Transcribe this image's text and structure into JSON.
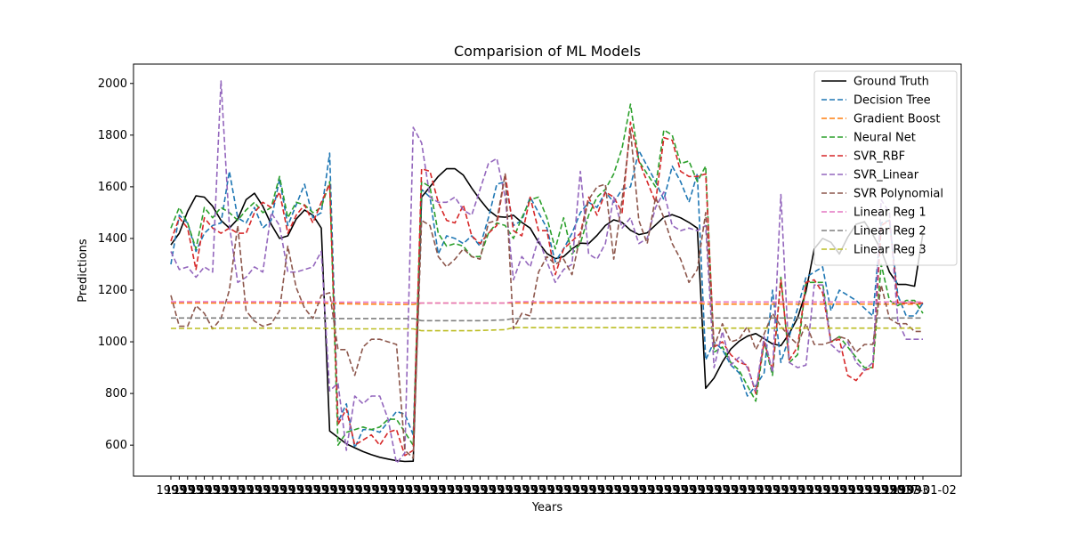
{
  "chart_data": {
    "type": "line",
    "title": "Comparision of ML Models",
    "xlabel": "Years",
    "ylabel": "Predictions",
    "ylim": [
      480,
      2075
    ],
    "yticks": [
      600,
      800,
      1000,
      1200,
      1400,
      1600,
      1800,
      2000
    ],
    "x_tick_text": "1993",
    "x_tick_text_end": "2017-01-02",
    "legend_position": "upper right",
    "grid": false,
    "series": [
      {
        "name": "Ground Truth",
        "color": "#000000",
        "style": "solid",
        "values": [
          1375,
          1420,
          1505,
          1565,
          1560,
          1525,
          1470,
          1440,
          1475,
          1550,
          1575,
          1525,
          1455,
          1400,
          1410,
          1475,
          1510,
          1490,
          1440,
          655,
          630,
          605,
          590,
          575,
          563,
          553,
          546,
          540,
          537,
          538,
          1560,
          1600,
          1640,
          1670,
          1670,
          1645,
          1595,
          1550,
          1510,
          1485,
          1482,
          1490,
          1462,
          1440,
          1385,
          1342,
          1322,
          1330,
          1360,
          1382,
          1380,
          1412,
          1450,
          1472,
          1462,
          1432,
          1415,
          1422,
          1452,
          1482,
          1492,
          1480,
          1462,
          1440,
          820,
          860,
          922,
          972,
          1002,
          1022,
          1032,
          1012,
          992,
          985,
          1032,
          1092,
          1195,
          1360,
          1400,
          1385,
          1340,
          1405,
          1455,
          1465,
          1415,
          1355,
          1270,
          1222,
          1222,
          1215,
          1420
        ]
      },
      {
        "name": "Decision Tree",
        "color": "#1f77b4",
        "style": "dashed",
        "values": [
          1300,
          1490,
          1460,
          1350,
          1420,
          1450,
          1460,
          1660,
          1480,
          1460,
          1520,
          1440,
          1470,
          1630,
          1450,
          1530,
          1610,
          1480,
          1500,
          1730,
          690,
          760,
          590,
          660,
          660,
          650,
          690,
          730,
          720,
          640,
          1590,
          1560,
          1340,
          1410,
          1400,
          1380,
          1410,
          1370,
          1480,
          1610,
          1620,
          1450,
          1470,
          1560,
          1500,
          1440,
          1310,
          1360,
          1420,
          1500,
          1540,
          1520,
          1580,
          1540,
          1590,
          1600,
          1740,
          1680,
          1620,
          1550,
          1680,
          1620,
          1540,
          1650,
          930,
          1000,
          970,
          910,
          880,
          790,
          830,
          880,
          1200,
          920,
          1020,
          1130,
          1250,
          1270,
          1290,
          1120,
          1200,
          1180,
          1160,
          1130,
          1100,
          1460,
          1470,
          1180,
          1100,
          1100,
          1150
        ]
      },
      {
        "name": "Gradient Boost",
        "color": "#ff7f0e",
        "style": "dashed",
        "values": [
          1150,
          1150,
          1150,
          1150,
          1150,
          1150,
          1150,
          1150,
          1150,
          1150,
          1150,
          1150,
          1150,
          1150,
          1150,
          1150,
          1150,
          1150,
          1150,
          1148,
          1148,
          1147,
          1147,
          1146,
          1146,
          1146,
          1145,
          1145,
          1145,
          1145,
          1150,
          1150,
          1150,
          1150,
          1150,
          1150,
          1150,
          1150,
          1150,
          1150,
          1150,
          1150,
          1150,
          1150,
          1150,
          1150,
          1150,
          1150,
          1150,
          1150,
          1150,
          1150,
          1150,
          1150,
          1150,
          1150,
          1150,
          1150,
          1150,
          1150,
          1150,
          1150,
          1150,
          1150,
          1146,
          1146,
          1146,
          1146,
          1146,
          1146,
          1146,
          1146,
          1146,
          1146,
          1146,
          1146,
          1146,
          1146,
          1146,
          1146,
          1146,
          1146,
          1146,
          1146,
          1146,
          1146,
          1146,
          1146,
          1146,
          1146,
          1146
        ]
      },
      {
        "name": "Neural Net",
        "color": "#2ca02c",
        "style": "dashed",
        "values": [
          1440,
          1520,
          1460,
          1360,
          1520,
          1480,
          1520,
          1500,
          1470,
          1510,
          1540,
          1500,
          1520,
          1640,
          1480,
          1540,
          1530,
          1500,
          1520,
          1620,
          600,
          650,
          660,
          670,
          660,
          670,
          700,
          700,
          650,
          600,
          1620,
          1600,
          1420,
          1370,
          1380,
          1370,
          1330,
          1330,
          1420,
          1460,
          1450,
          1400,
          1480,
          1550,
          1560,
          1480,
          1360,
          1480,
          1340,
          1380,
          1490,
          1560,
          1590,
          1650,
          1750,
          1920,
          1700,
          1650,
          1600,
          1820,
          1800,
          1690,
          1700,
          1620,
          1680,
          960,
          980,
          920,
          890,
          830,
          770,
          1000,
          870,
          1250,
          920,
          950,
          1230,
          1230,
          1230,
          1000,
          1020,
          980,
          940,
          900,
          900,
          1300,
          1160,
          1140,
          1160,
          1160,
          1110
        ]
      },
      {
        "name": "SVR_RBF",
        "color": "#d62728",
        "style": "dashed",
        "values": [
          1390,
          1480,
          1440,
          1280,
          1480,
          1440,
          1420,
          1440,
          1420,
          1420,
          1500,
          1540,
          1520,
          1580,
          1420,
          1490,
          1530,
          1460,
          1540,
          1610,
          680,
          740,
          600,
          620,
          640,
          600,
          650,
          660,
          560,
          580,
          1670,
          1660,
          1540,
          1470,
          1460,
          1530,
          1410,
          1380,
          1420,
          1450,
          1650,
          1430,
          1410,
          1560,
          1430,
          1430,
          1260,
          1360,
          1390,
          1420,
          1560,
          1490,
          1580,
          1560,
          1500,
          1850,
          1700,
          1620,
          1540,
          1790,
          1780,
          1660,
          1640,
          1640,
          1650,
          980,
          1000,
          950,
          920,
          910,
          800,
          1000,
          890,
          1240,
          930,
          980,
          1230,
          1240,
          1190,
          1000,
          1010,
          870,
          850,
          890,
          900,
          1450,
          1470,
          1150,
          1150,
          1150,
          1150
        ]
      },
      {
        "name": "SVR_Linear",
        "color": "#9467bd",
        "style": "dashed",
        "values": [
          1350,
          1280,
          1290,
          1250,
          1290,
          1270,
          2010,
          1450,
          1230,
          1250,
          1290,
          1270,
          1500,
          1450,
          1270,
          1270,
          1280,
          1290,
          1350,
          810,
          840,
          580,
          790,
          760,
          790,
          790,
          700,
          530,
          570,
          1830,
          1770,
          1560,
          1540,
          1540,
          1560,
          1510,
          1490,
          1590,
          1690,
          1710,
          1560,
          1240,
          1330,
          1290,
          1400,
          1310,
          1230,
          1280,
          1300,
          1660,
          1340,
          1320,
          1380,
          1560,
          1440,
          1480,
          1380,
          1400,
          1520,
          1580,
          1450,
          1430,
          1440,
          1430,
          1450,
          900,
          1040,
          910,
          940,
          900,
          810,
          1020,
          880,
          1570,
          920,
          900,
          910,
          1220,
          1220,
          990,
          960,
          1000,
          920,
          890,
          920,
          1550,
          1500,
          1080,
          1010,
          1010,
          1010
        ]
      },
      {
        "name": "SVR Polynomial",
        "color": "#8c564b",
        "style": "dashed",
        "values": [
          1180,
          1060,
          1060,
          1140,
          1110,
          1050,
          1090,
          1200,
          1450,
          1120,
          1080,
          1060,
          1070,
          1120,
          1370,
          1210,
          1130,
          1090,
          1180,
          1190,
          970,
          970,
          870,
          980,
          1010,
          1010,
          1000,
          990,
          580,
          550,
          1470,
          1450,
          1330,
          1290,
          1320,
          1360,
          1330,
          1320,
          1460,
          1470,
          1650,
          1050,
          1110,
          1100,
          1270,
          1330,
          1300,
          1320,
          1260,
          1410,
          1550,
          1600,
          1610,
          1320,
          1550,
          1820,
          1470,
          1380,
          1560,
          1480,
          1380,
          1320,
          1230,
          1280,
          1500,
          980,
          1070,
          1000,
          1010,
          1060,
          970,
          1030,
          1110,
          1060,
          1020,
          990,
          1070,
          990,
          990,
          1000,
          1020,
          1010,
          960,
          990,
          990,
          1220,
          1090,
          1070,
          1070,
          1040,
          1040
        ]
      },
      {
        "name": "Linear Reg 1",
        "color": "#e377c2",
        "style": "dashed",
        "values": [
          1155,
          1155,
          1155,
          1155,
          1155,
          1155,
          1155,
          1155,
          1155,
          1155,
          1155,
          1155,
          1155,
          1155,
          1155,
          1155,
          1155,
          1155,
          1155,
          1154,
          1153,
          1153,
          1153,
          1153,
          1153,
          1153,
          1153,
          1152,
          1152,
          1152,
          1150,
          1150,
          1150,
          1150,
          1150,
          1150,
          1150,
          1150,
          1150,
          1150,
          1150,
          1155,
          1155,
          1155,
          1155,
          1155,
          1155,
          1155,
          1155,
          1155,
          1155,
          1155,
          1155,
          1155,
          1155,
          1155,
          1155,
          1155,
          1155,
          1155,
          1155,
          1155,
          1155,
          1155,
          1154,
          1154,
          1154,
          1154,
          1154,
          1154,
          1154,
          1154,
          1154,
          1154,
          1154,
          1154,
          1154,
          1154,
          1154,
          1154,
          1154,
          1154,
          1154,
          1154,
          1154,
          1154,
          1154,
          1154,
          1154,
          1154,
          1154
        ]
      },
      {
        "name": "Linear Reg 2",
        "color": "#7f7f7f",
        "style": "dashed",
        "values": [
          1092,
          1092,
          1092,
          1092,
          1092,
          1092,
          1092,
          1092,
          1092,
          1092,
          1092,
          1092,
          1092,
          1092,
          1092,
          1092,
          1092,
          1092,
          1092,
          1091,
          1090,
          1090,
          1090,
          1090,
          1090,
          1090,
          1090,
          1090,
          1090,
          1090,
          1082,
          1082,
          1082,
          1082,
          1082,
          1082,
          1082,
          1082,
          1083,
          1084,
          1085,
          1090,
          1090,
          1090,
          1090,
          1090,
          1091,
          1091,
          1091,
          1091,
          1091,
          1091,
          1091,
          1092,
          1092,
          1092,
          1092,
          1092,
          1092,
          1092,
          1092,
          1092,
          1092,
          1092,
          1092,
          1092,
          1092,
          1092,
          1092,
          1092,
          1092,
          1092,
          1092,
          1092,
          1092,
          1092,
          1092,
          1092,
          1092,
          1092,
          1092,
          1092,
          1092,
          1092,
          1092,
          1092,
          1092,
          1092,
          1092,
          1092,
          1092
        ]
      },
      {
        "name": "Linear Reg 3",
        "color": "#bcbd22",
        "style": "dashed",
        "values": [
          1052,
          1052,
          1052,
          1052,
          1052,
          1052,
          1053,
          1053,
          1053,
          1053,
          1053,
          1053,
          1053,
          1053,
          1053,
          1053,
          1053,
          1053,
          1052,
          1052,
          1050,
          1050,
          1050,
          1050,
          1050,
          1050,
          1050,
          1050,
          1050,
          1050,
          1043,
          1043,
          1043,
          1043,
          1043,
          1043,
          1043,
          1044,
          1045,
          1046,
          1047,
          1055,
          1055,
          1055,
          1055,
          1055,
          1055,
          1055,
          1055,
          1055,
          1055,
          1055,
          1055,
          1055,
          1055,
          1055,
          1055,
          1055,
          1055,
          1055,
          1055,
          1055,
          1055,
          1055,
          1053,
          1053,
          1053,
          1053,
          1053,
          1053,
          1053,
          1053,
          1053,
          1053,
          1053,
          1053,
          1053,
          1053,
          1053,
          1053,
          1053,
          1053,
          1053,
          1053,
          1053,
          1053,
          1053,
          1053,
          1053,
          1053,
          1053
        ]
      }
    ]
  }
}
